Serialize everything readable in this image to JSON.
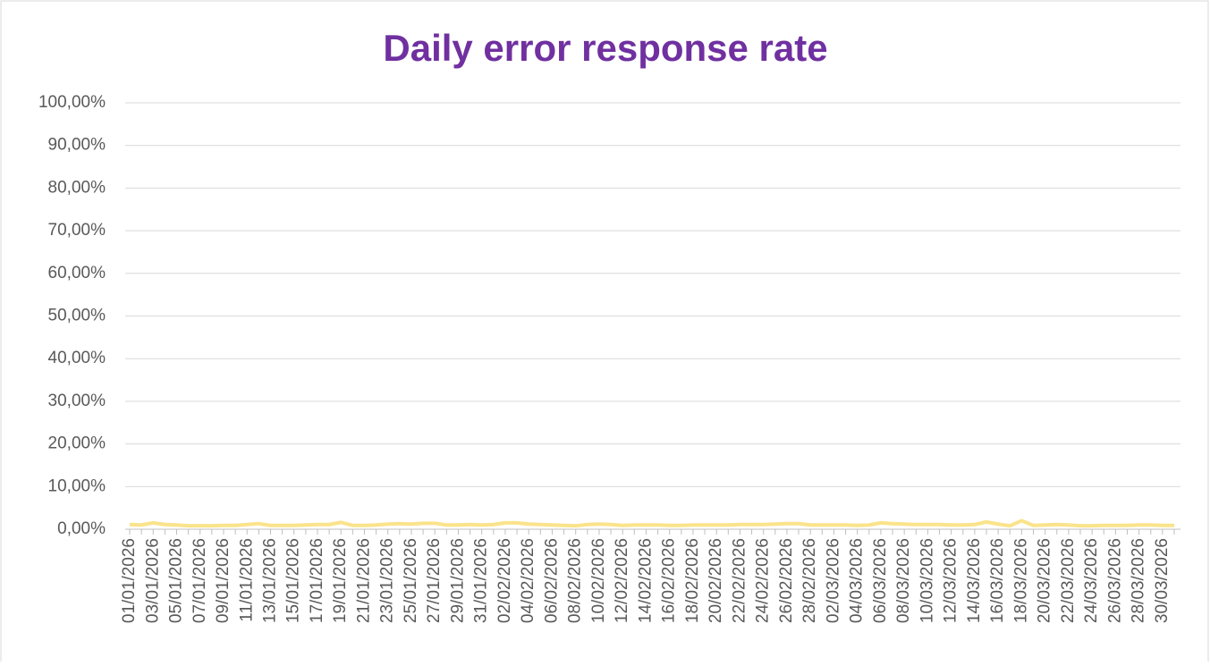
{
  "chart_data": {
    "type": "line",
    "title": "Daily error response rate",
    "categories": [
      "01/01/2026",
      null,
      "03/01/2026",
      null,
      "05/01/2026",
      null,
      "07/01/2026",
      null,
      "09/01/2026",
      null,
      "11/01/2026",
      null,
      "13/01/2026",
      null,
      "15/01/2026",
      null,
      "17/01/2026",
      null,
      "19/01/2026",
      null,
      "21/01/2026",
      null,
      "23/01/2026",
      null,
      "25/01/2026",
      null,
      "27/01/2026",
      null,
      "29/01/2026",
      null,
      "31/01/2026",
      null,
      "02/02/2026",
      null,
      "04/02/2026",
      null,
      "06/02/2026",
      null,
      "08/02/2026",
      null,
      "10/02/2026",
      null,
      "12/02/2026",
      null,
      "14/02/2026",
      null,
      "16/02/2026",
      null,
      "18/02/2026",
      null,
      "20/02/2026",
      null,
      "22/02/2026",
      null,
      "24/02/2026",
      null,
      "26/02/2026",
      null,
      "28/02/2026",
      null,
      "02/03/2026",
      null,
      "04/03/2026",
      null,
      "06/03/2026",
      null,
      "08/03/2026",
      null,
      "10/03/2026",
      null,
      "12/03/2026",
      null,
      "14/03/2026",
      null,
      "16/03/2026",
      null,
      "18/03/2026",
      null,
      "20/03/2026",
      null,
      "22/03/2026",
      null,
      "24/03/2026",
      null,
      "26/03/2026",
      null,
      "28/03/2026",
      null,
      "30/03/2026",
      null
    ],
    "values": [
      1.1,
      1.0,
      1.5,
      1.1,
      1.0,
      0.8,
      0.8,
      0.8,
      0.9,
      0.9,
      1.1,
      1.3,
      0.9,
      0.9,
      0.9,
      1.0,
      1.1,
      1.1,
      1.6,
      0.9,
      0.9,
      1.0,
      1.2,
      1.3,
      1.2,
      1.4,
      1.4,
      1.0,
      1.0,
      1.1,
      1.0,
      1.1,
      1.5,
      1.5,
      1.2,
      1.1,
      1.0,
      0.9,
      0.8,
      1.1,
      1.2,
      1.1,
      0.9,
      1.0,
      1.0,
      1.0,
      0.9,
      0.9,
      1.0,
      1.0,
      1.0,
      1.0,
      1.1,
      1.1,
      1.1,
      1.2,
      1.3,
      1.3,
      1.0,
      1.0,
      1.0,
      1.0,
      0.9,
      1.0,
      1.5,
      1.3,
      1.2,
      1.1,
      1.1,
      1.1,
      1.0,
      1.0,
      1.1,
      1.7,
      1.2,
      0.8,
      2.0,
      0.9,
      1.0,
      1.1,
      1.0,
      0.8,
      0.8,
      0.9,
      0.9,
      0.9,
      1.0,
      1.0,
      0.9,
      0.9
    ],
    "color": "#fae38a",
    "ylim": [
      0,
      100
    ],
    "yticks": [
      {
        "value": 0,
        "label": "0,00%"
      },
      {
        "value": 10,
        "label": "10,00%"
      },
      {
        "value": 20,
        "label": "20,00%"
      },
      {
        "value": 30,
        "label": "30,00%"
      },
      {
        "value": 40,
        "label": "40,00%"
      },
      {
        "value": 50,
        "label": "50,00%"
      },
      {
        "value": 60,
        "label": "60,00%"
      },
      {
        "value": 70,
        "label": "70,00%"
      },
      {
        "value": 80,
        "label": "80,00%"
      },
      {
        "value": 90,
        "label": "90,00%"
      },
      {
        "value": 100,
        "label": "100,00%"
      }
    ],
    "grid": true
  }
}
